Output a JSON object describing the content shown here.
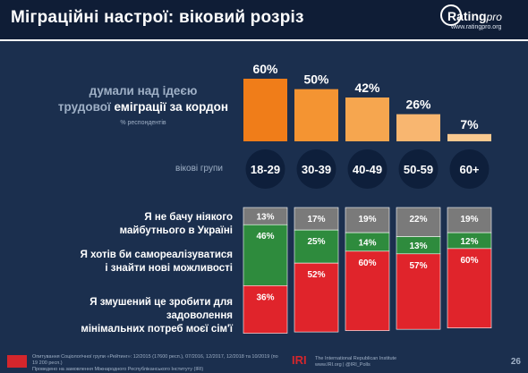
{
  "header": {
    "title": "Міграційні настрої: віковий розріз",
    "logo_name": "Rating",
    "logo_suffix": "pro",
    "logo_url": "www.ratingpro.org"
  },
  "question": {
    "line1": "думали над ідеєю",
    "line2_plain": "трудової ",
    "line2_em": "еміграції за кордон",
    "note": "% респондентів"
  },
  "age_label": "вікові групи",
  "legend": {
    "gray": [
      "Я не бачу ніякого",
      "майбутнього в Україні"
    ],
    "green": [
      "Я хотів би самореалізуватися",
      "і знайти нові можливості"
    ],
    "red": [
      "Я змушений це зробити для задоволення",
      "мінімальних потреб моєї сім'ї"
    ]
  },
  "colors": {
    "background": "#1b2f4e",
    "orange_bars": [
      "#f07d19",
      "#f49432",
      "#f6a64f",
      "#f8b670",
      "#f9c990"
    ],
    "gray": "#7a7a7a",
    "green": "#2e8b3d",
    "red": "#e0242b",
    "pill": "#0e1f3b"
  },
  "chart_data": [
    {
      "type": "bar",
      "title": "думали над ідеєю трудової еміграції за кордон",
      "categories": [
        "18-29",
        "30-39",
        "40-49",
        "50-59",
        "60+"
      ],
      "values": [
        60,
        50,
        42,
        26,
        7
      ],
      "value_labels": [
        "60%",
        "50%",
        "42%",
        "26%",
        "7%"
      ],
      "ylim": [
        0,
        60
      ]
    },
    {
      "type": "bar",
      "stacked": true,
      "categories": [
        "18-29",
        "30-39",
        "40-49",
        "50-59",
        "60+"
      ],
      "series": [
        {
          "key": "gray",
          "values": [
            13,
            17,
            19,
            22,
            19
          ],
          "labels": [
            "13%",
            "17%",
            "19%",
            "22%",
            "19%"
          ]
        },
        {
          "key": "green",
          "values": [
            46,
            25,
            14,
            13,
            12
          ],
          "labels": [
            "46%",
            "25%",
            "14%",
            "13%",
            "12%"
          ]
        },
        {
          "key": "red",
          "values": [
            36,
            52,
            60,
            57,
            60
          ],
          "labels": [
            "36%",
            "52%",
            "60%",
            "57%",
            "60%"
          ]
        }
      ],
      "ylim": [
        0,
        100
      ]
    }
  ],
  "footer": {
    "source_line1": "Опитування Соціологічної групи «Рейтинг»: 12/2015 (17600 респ.), 07/2016, 12/2017, 12/2018 та 10/2019 (по 19 200 респ.)",
    "source_line2": "Проведено на замовлення Міжнародного Республіканського Інституту (IRI)",
    "iri_mark": "IRI",
    "iri_line1": "The International Republican Institute",
    "iri_line2": "www.IRI.org | @IRI_Polls",
    "page": "26"
  }
}
